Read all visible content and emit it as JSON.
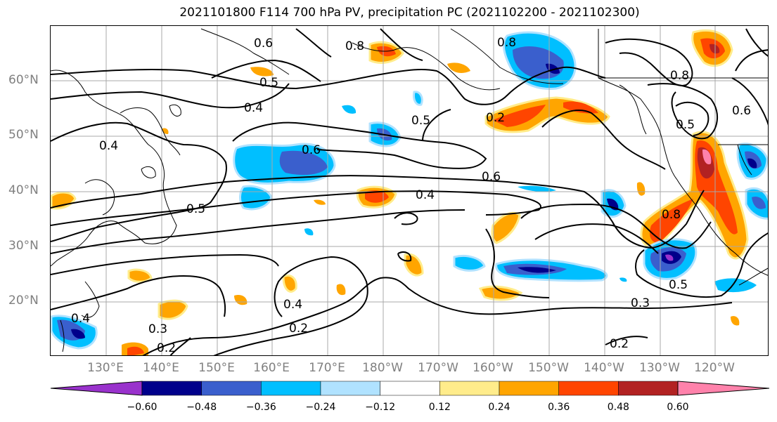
{
  "title": "2021101800 F114 700 hPa PV, precipitation PC (2021102200 - 2021102300)",
  "lat_labels": [
    "60°N",
    "50°N",
    "40°N",
    "30°N",
    "20°N"
  ],
  "lon_labels": [
    "130°E",
    "140°E",
    "150°E",
    "160°E",
    "170°E",
    "180°W",
    "170°W",
    "160°W",
    "150°W",
    "140°W",
    "130°W",
    "120°W"
  ],
  "contour_labels": [
    "0.6",
    "0.8",
    "0.8",
    "0.8",
    "0.5",
    "0.4",
    "0.4",
    "0.6",
    "0.5",
    "0.6",
    "0.4",
    "0.5",
    "0.6",
    "0.4",
    "0.5",
    "0.2",
    "0.2",
    "0.3",
    "0.8",
    "0.5",
    "0.3",
    "0.2",
    "0.4",
    "0.2"
  ],
  "colorbar": {
    "colors": [
      "#9932cc",
      "#00008b",
      "#3a5fcd",
      "#00bfff",
      "#b0e2ff",
      "#ffffff",
      "#ffec8b",
      "#ffa500",
      "#ff4500",
      "#b22222",
      "#ff82ab"
    ],
    "ticks": [
      "−0.60",
      "−0.48",
      "−0.36",
      "−0.24",
      "−0.12",
      "0.12",
      "0.24",
      "0.36",
      "0.48",
      "0.60"
    ]
  }
}
